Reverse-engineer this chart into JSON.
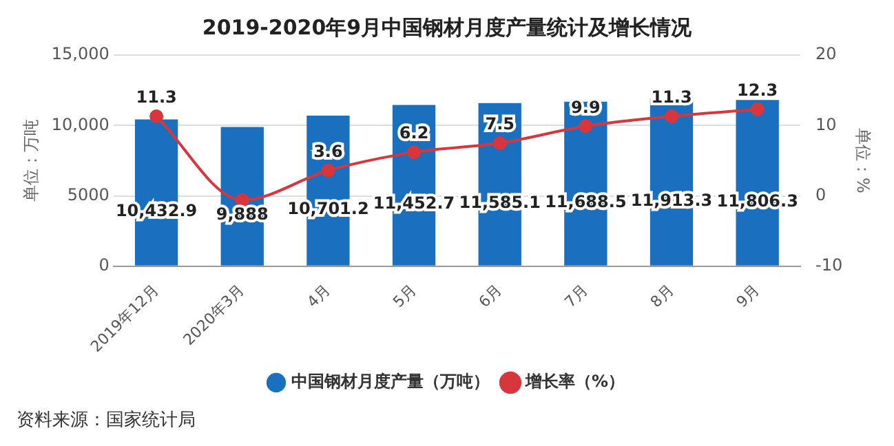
{
  "chart_data": {
    "type": "bar",
    "title": "2019-2020年9月中国钢材月度产量统计及增长情况",
    "categories": [
      "2019年12月",
      "2020年3月",
      "4月",
      "5月",
      "6月",
      "7月",
      "8月",
      "9月"
    ],
    "series": [
      {
        "name": "中国钢材月度产量（万吨）",
        "color": "#1a6fbe",
        "values": [
          10432.9,
          9888,
          10701.2,
          11452.7,
          11585.1,
          11688.5,
          11913.3,
          11806.3
        ],
        "value_labels": [
          "10,432.9",
          "9,888",
          "10,701.2",
          "11,452.7",
          "11,585.1",
          "11,688.5",
          "11,913.3",
          "11,806.3"
        ]
      },
      {
        "name": "增长率（%）",
        "type": "line",
        "axis": "y2",
        "color": "#d7363c",
        "marker": "circle",
        "values": [
          11.3,
          -0.6,
          3.6,
          6.2,
          7.5,
          9.9,
          11.3,
          12.3
        ],
        "value_labels": [
          "11.3",
          null,
          "3.6",
          "6.2",
          "7.5",
          "9.9",
          "11.3",
          "12.3"
        ]
      }
    ],
    "ylabel": "单位：万吨",
    "y2label": "单位：%",
    "ylim": [
      0,
      15000
    ],
    "yticks": [
      0,
      5000,
      {
        "value": 10000,
        "label": "10,000"
      },
      {
        "value": 15000,
        "label": "15,000"
      }
    ],
    "y2lim": [
      -10,
      20
    ],
    "y2ticks": [
      -10,
      0,
      10,
      20
    ],
    "grid": "y",
    "legend": "bottom",
    "annotations": [
      "资料来源：国家统计局"
    ]
  }
}
